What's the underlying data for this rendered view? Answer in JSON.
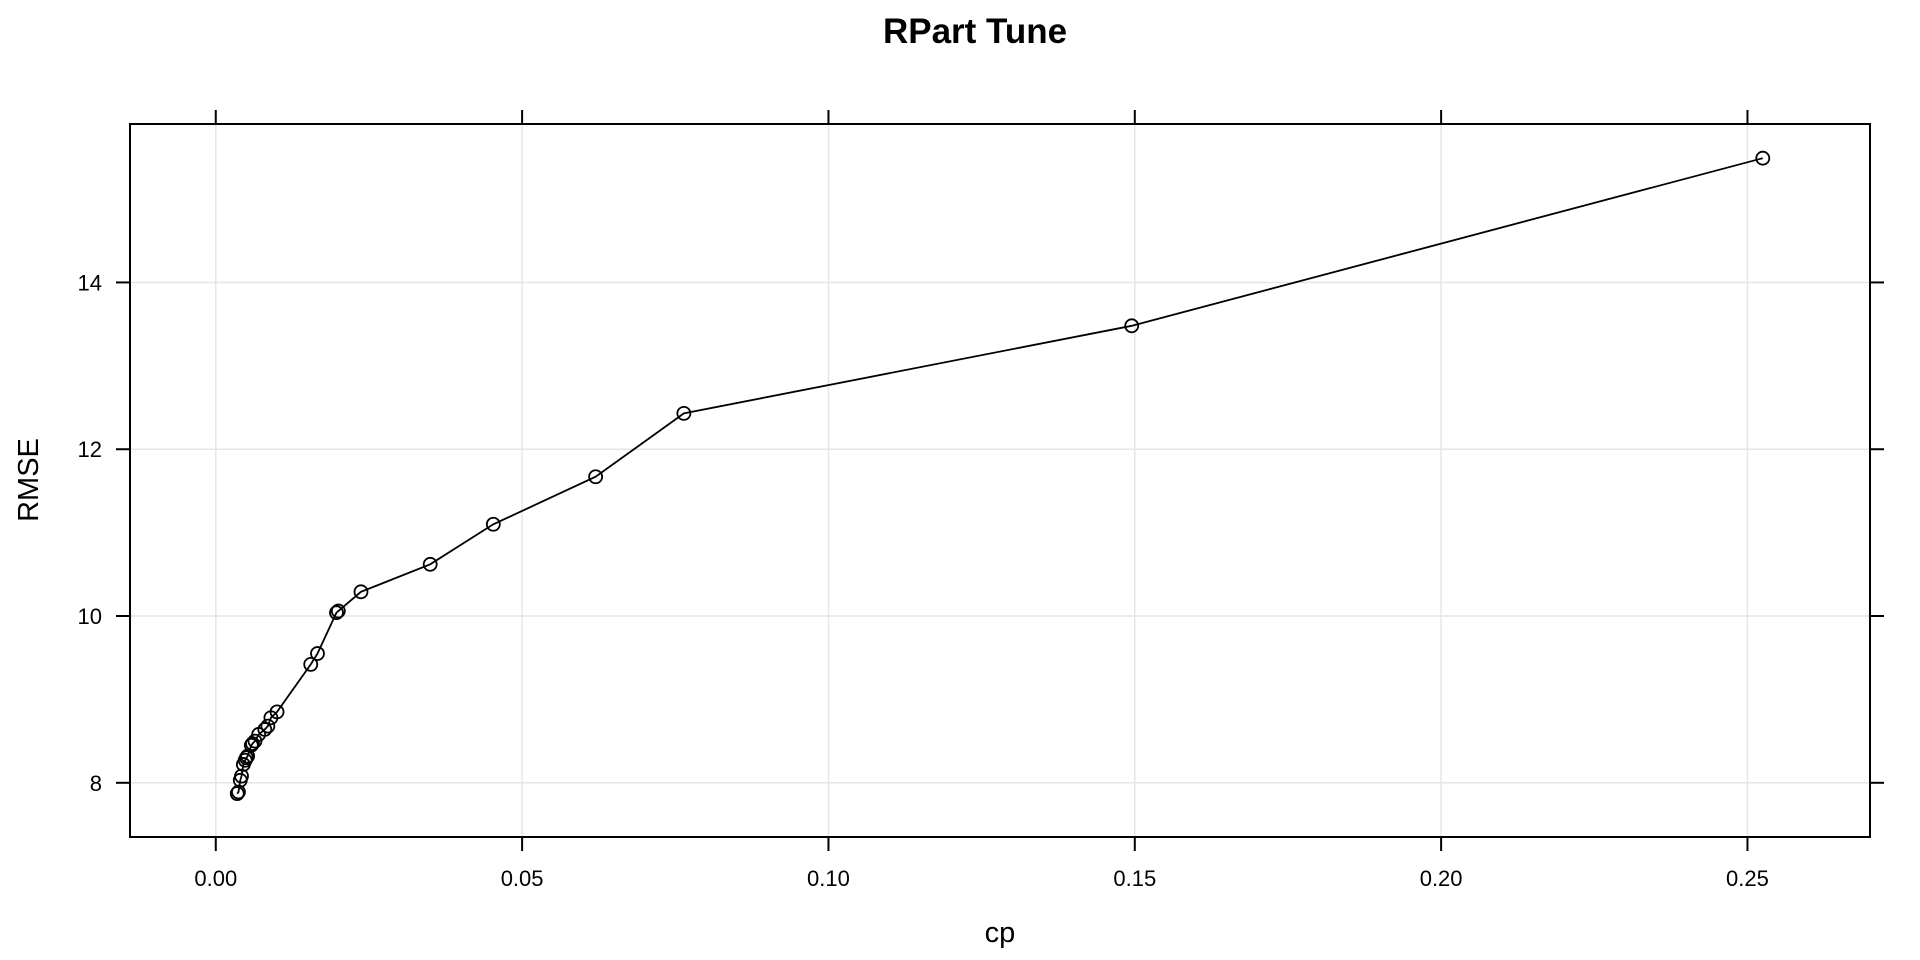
{
  "chart_data": {
    "type": "line",
    "title": "RPart Tune",
    "xlabel": "cp",
    "ylabel": "RMSE",
    "xlim": [
      -0.014,
      0.27
    ],
    "ylim": [
      7.35,
      15.9
    ],
    "xticks": [
      0.0,
      0.05,
      0.1,
      0.15,
      0.2,
      0.25
    ],
    "xtick_labels": [
      "0.00",
      "0.05",
      "0.10",
      "0.15",
      "0.20",
      "0.25"
    ],
    "yticks": [
      8,
      10,
      12,
      14
    ],
    "ytick_labels": [
      "8",
      "10",
      "12",
      "14"
    ],
    "grid": true,
    "legend": "none",
    "marker": "open-circle",
    "series": [
      {
        "x": [
          0.0035,
          0.0037,
          0.004,
          0.0042,
          0.0045,
          0.0048,
          0.005,
          0.0052,
          0.0058,
          0.006,
          0.0064,
          0.007,
          0.008,
          0.0085,
          0.009,
          0.01,
          0.0155,
          0.0166,
          0.0197,
          0.02,
          0.0237,
          0.035,
          0.0453,
          0.062,
          0.0764,
          0.1495,
          0.2525
        ],
        "y": [
          7.87,
          7.89,
          8.03,
          8.08,
          8.22,
          8.27,
          8.3,
          8.32,
          8.45,
          8.47,
          8.5,
          8.58,
          8.64,
          8.68,
          8.78,
          8.85,
          9.42,
          9.55,
          10.04,
          10.06,
          10.29,
          10.62,
          11.1,
          11.67,
          12.43,
          13.48,
          15.49
        ]
      }
    ]
  }
}
